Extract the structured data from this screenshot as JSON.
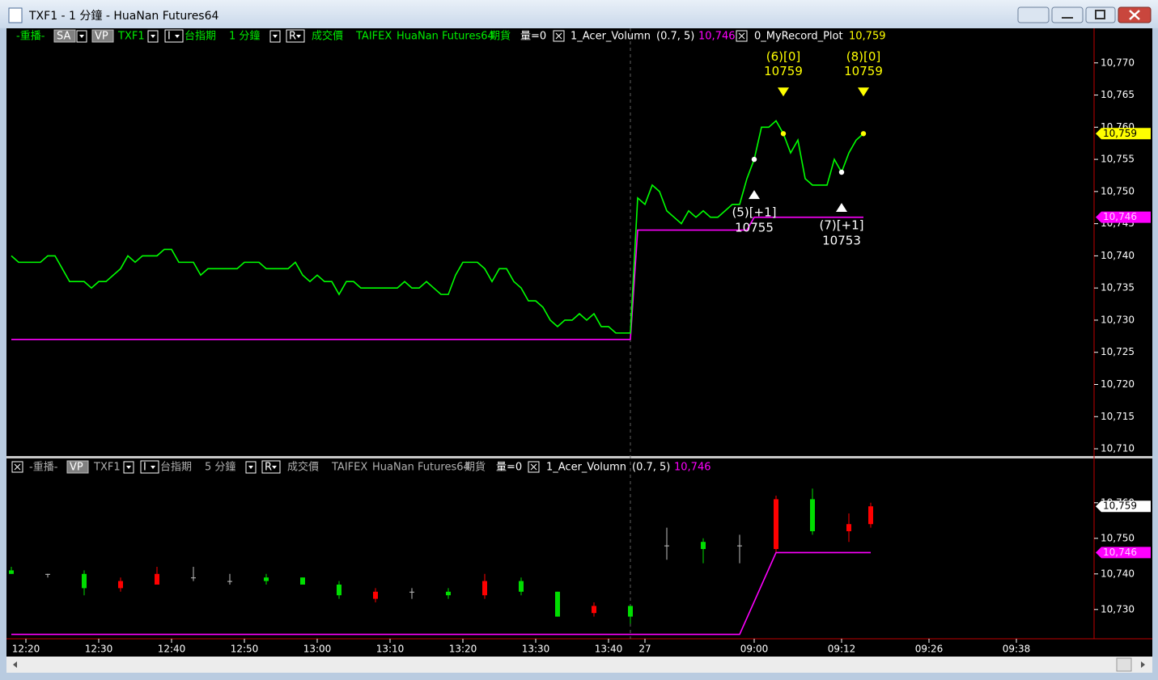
{
  "window": {
    "title": "TXF1 - 1 分鐘 - HuaNan Futures64"
  },
  "top_panel": {
    "header": [
      "-重播-",
      "SA",
      "VP",
      "TXF1",
      "I",
      "台指期",
      "1 分鐘",
      "R",
      "成交價",
      "TAIFEX",
      "HuaNan Futures64",
      "期貨",
      "量=0",
      "1_Acer_Volumn",
      "(0.7, 5)",
      "10,746",
      "0_MyRecord_Plot",
      "10,759"
    ],
    "ylim": [
      10709,
      10775
    ],
    "yticks": [
      {
        "value": 10710,
        "label": "10,710"
      },
      {
        "value": 10715,
        "label": "10,715"
      },
      {
        "value": 10720,
        "label": "10,720"
      },
      {
        "value": 10725,
        "label": "10,725"
      },
      {
        "value": 10730,
        "label": "10,730"
      },
      {
        "value": 10735,
        "label": "10,735"
      },
      {
        "value": 10740,
        "label": "10,740"
      },
      {
        "value": 10745,
        "label": "10,745"
      },
      {
        "value": 10750,
        "label": "10,750"
      },
      {
        "value": 10755,
        "label": "10,755"
      },
      {
        "value": 10760,
        "label": "10,760"
      },
      {
        "value": 10765,
        "label": "10,765"
      },
      {
        "value": 10770,
        "label": "10,770"
      }
    ],
    "series": [
      {
        "color": "#00ff00",
        "values": [
          10740,
          10739,
          10739,
          10739,
          10739,
          10740,
          10740,
          10738,
          10736,
          10736,
          10736,
          10735,
          10736,
          10736,
          10737,
          10738,
          10740,
          10739,
          10740,
          10740,
          10740,
          10741,
          10741,
          10739,
          10739,
          10739,
          10737,
          10738,
          10738,
          10738,
          10738,
          10738,
          10739,
          10739,
          10739,
          10738,
          10738,
          10738,
          10738,
          10739,
          10737,
          10736,
          10737,
          10736,
          10736,
          10734,
          10736,
          10736,
          10735,
          10735,
          10735,
          10735,
          10735,
          10735,
          10736,
          10735,
          10735,
          10736,
          10735,
          10734,
          10734,
          10737,
          10739,
          10739,
          10739,
          10738,
          10736,
          10738,
          10738,
          10736,
          10735,
          10733,
          10733,
          10732,
          10730,
          10729,
          10730,
          10730,
          10731,
          10730,
          10731,
          10729,
          10729,
          10728,
          10728,
          10728,
          10749,
          10748,
          10751,
          10750,
          10747,
          10746,
          10745,
          10747,
          10746,
          10747,
          10746,
          10746,
          10747,
          10748,
          10748,
          10752,
          10755,
          10760,
          10760,
          10761,
          10759,
          10756,
          10758,
          10752,
          10751,
          10751,
          10751,
          10755,
          10753,
          10756,
          10758,
          10759
        ]
      },
      {
        "color": "#ff00ff",
        "values": [
          10727,
          10727,
          10727,
          10727,
          10727,
          10727,
          10727,
          10727,
          10727,
          10727,
          10727,
          10727,
          10727,
          10727,
          10727,
          10727,
          10727,
          10727,
          10727,
          10727,
          10727,
          10727,
          10727,
          10727,
          10727,
          10727,
          10727,
          10727,
          10727,
          10727,
          10727,
          10727,
          10727,
          10727,
          10727,
          10727,
          10727,
          10727,
          10727,
          10727,
          10727,
          10727,
          10727,
          10727,
          10727,
          10727,
          10727,
          10727,
          10727,
          10727,
          10727,
          10727,
          10727,
          10727,
          10727,
          10727,
          10727,
          10727,
          10727,
          10727,
          10727,
          10727,
          10727,
          10727,
          10727,
          10727,
          10727,
          10727,
          10727,
          10727,
          10727,
          10727,
          10727,
          10727,
          10727,
          10727,
          10727,
          10727,
          10727,
          10727,
          10727,
          10727,
          10727,
          10727,
          10727,
          10727,
          10744,
          10744,
          10744,
          10744,
          10744,
          10744,
          10744,
          10744,
          10744,
          10744,
          10744,
          10744,
          10744,
          10744,
          10744,
          10744,
          10746,
          10746,
          10746,
          10746,
          10746,
          10746,
          10746,
          10746,
          10746,
          10746,
          10746,
          10746,
          10746,
          10746,
          10746,
          10746
        ]
      }
    ],
    "trades": [
      {
        "label": "(5)[+1]",
        "price": 10755,
        "x": 102,
        "color": "#ffffff",
        "marker": "up"
      },
      {
        "label": "(6)[0]",
        "price": 10759,
        "x": 106,
        "color": "#ffff00",
        "marker": "down"
      },
      {
        "label": "(7)[+1]",
        "price": 10753,
        "x": 114,
        "color": "#ffffff",
        "marker": "up"
      },
      {
        "label": "(8)[0]",
        "price": 10759,
        "x": 117,
        "color": "#ffff00",
        "marker": "down"
      }
    ],
    "price_tags": [
      {
        "value": 10759,
        "label": "10,759",
        "color": "#ffff00",
        "text_color": "#000000"
      },
      {
        "value": 10746,
        "label": "10,746",
        "color": "#ff00ff",
        "text_color": "#ffd0ff"
      }
    ]
  },
  "bottom_panel": {
    "header": [
      "-重播-",
      "VP",
      "TXF1",
      "I",
      "台指期",
      "5 分鐘",
      "R",
      "成交價",
      "TAIFEX",
      "HuaNan Futures64",
      "期貨",
      "量=0",
      "1_Acer_Volumn",
      "(0.7, 5)",
      "10,746"
    ],
    "ylim": [
      10722,
      10767
    ],
    "yticks": [
      {
        "value": 10730,
        "label": "10,730"
      },
      {
        "value": 10740,
        "label": "10,740"
      },
      {
        "value": 10750,
        "label": "10,750"
      },
      {
        "value": 10760,
        "label": "10,760"
      }
    ],
    "up_color": "#ff0000",
    "down_color": "#00dd00",
    "flat_color": "#c0c0c0",
    "candles": {
      "x": [
        0,
        5,
        10,
        15,
        20,
        25,
        30,
        35,
        40,
        45,
        50,
        55,
        60,
        65,
        70,
        75,
        80,
        85,
        90,
        95,
        100,
        105,
        110,
        115,
        118
      ],
      "open": [
        10741,
        10740,
        10740,
        10736,
        10737,
        10739,
        10738,
        10739,
        10739,
        10737,
        10733,
        10735,
        10735,
        10734,
        10738,
        10735,
        10729,
        10731,
        10748,
        10749,
        10748,
        10747,
        10761,
        10752,
        10754
      ],
      "high": [
        10742,
        10740,
        10741,
        10739,
        10742,
        10742,
        10740,
        10740,
        10739,
        10738,
        10736,
        10736,
        10736,
        10740,
        10739,
        10735,
        10732,
        10731,
        10753,
        10750,
        10751,
        10762,
        10764,
        10757,
        10760
      ],
      "low": [
        10740,
        10739,
        10734,
        10735,
        10737,
        10738,
        10737,
        10737,
        10737,
        10733,
        10732,
        10733,
        10733,
        10733,
        10734,
        10728,
        10728,
        10726,
        10744,
        10743,
        10743,
        10746,
        10751,
        10749,
        10753
      ],
      "close": [
        10740,
        10740,
        10736,
        10738,
        10740,
        10739,
        10738,
        10738,
        10737,
        10734,
        10735,
        10735,
        10734,
        10738,
        10735,
        10728,
        10731,
        10728,
        10748,
        10747,
        10748,
        10761,
        10752,
        10754,
        10759
      ]
    },
    "line": {
      "color": "#ff00ff",
      "values": [
        10723,
        10723,
        10723,
        10723,
        10723,
        10723,
        10723,
        10723,
        10723,
        10723,
        10723,
        10723,
        10723,
        10723,
        10723,
        10723,
        10723,
        10723,
        10723,
        10723,
        10723,
        10746,
        10746,
        10746,
        10746
      ]
    },
    "price_tags": [
      {
        "value": 10759,
        "label": "10,759",
        "color": "#ffffff",
        "text_color": "#000000"
      },
      {
        "value": 10746,
        "label": "10,746",
        "color": "#ff00ff",
        "text_color": "#ffd0ff"
      }
    ]
  },
  "x_axis": {
    "ticks": [
      {
        "value": 2,
        "label": "12:20"
      },
      {
        "value": 12,
        "label": "12:30"
      },
      {
        "value": 22,
        "label": "12:40"
      },
      {
        "value": 32,
        "label": "12:50"
      },
      {
        "value": 42,
        "label": "13:00"
      },
      {
        "value": 52,
        "label": "13:10"
      },
      {
        "value": 62,
        "label": "13:20"
      },
      {
        "value": 72,
        "label": "13:30"
      },
      {
        "value": 82,
        "label": "13:40"
      },
      {
        "value": 87,
        "label": "27"
      },
      {
        "value": 102,
        "label": "09:00"
      },
      {
        "value": 114,
        "label": "09:12"
      },
      {
        "value": 126,
        "label": "09:26"
      },
      {
        "value": 138,
        "label": "09:38"
      }
    ]
  }
}
